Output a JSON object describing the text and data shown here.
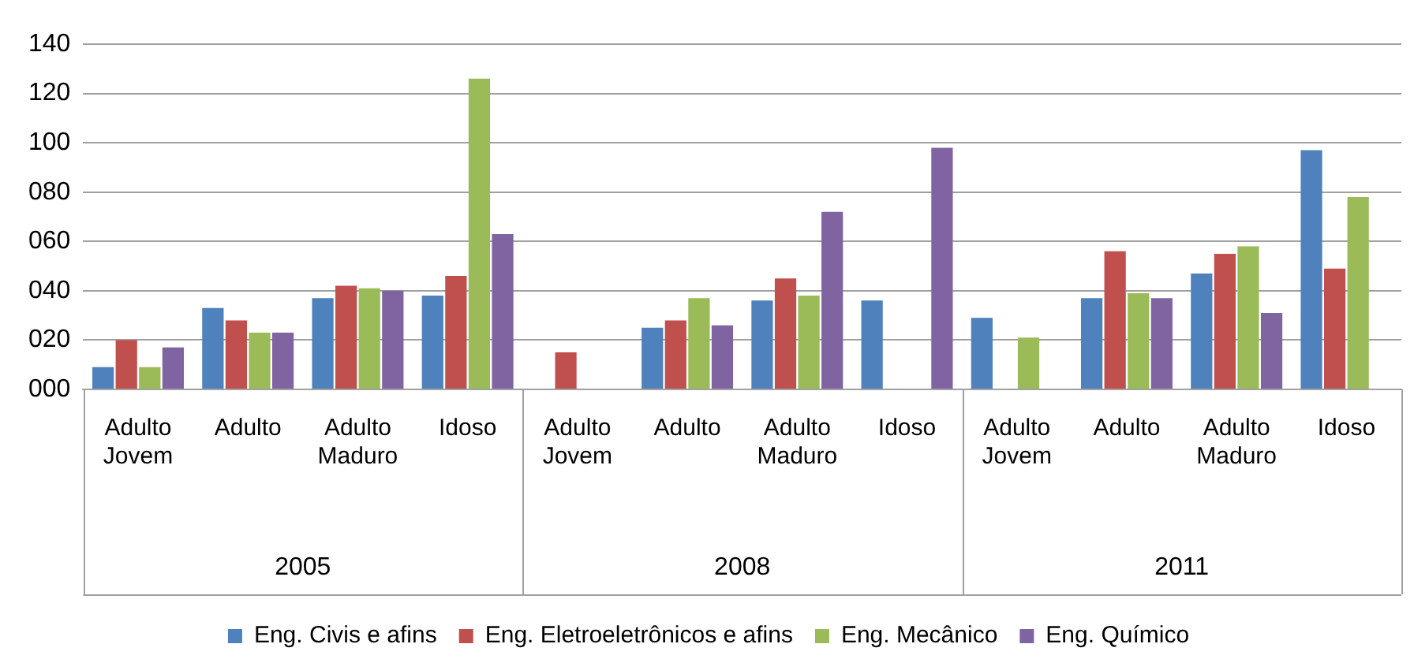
{
  "chart_data": {
    "type": "bar",
    "categories": [
      "Adulto Jovem",
      "Adulto",
      "Adulto Maduro",
      "Idoso",
      "Adulto Jovem",
      "Adulto",
      "Adulto Maduro",
      "Idoso",
      "Adulto Jovem",
      "Adulto",
      "Adulto Maduro",
      "Idoso"
    ],
    "annotations": [
      "2005",
      "2008",
      "2011"
    ],
    "series": [
      {
        "name": "Eng. Civis e afins",
        "color": "#4f81bd",
        "values": [
          9,
          33,
          37,
          38,
          null,
          25,
          36,
          36,
          29,
          37,
          47,
          97
        ]
      },
      {
        "name": "Eng. Eletroeletrônicos e afins",
        "color": "#c0504d",
        "values": [
          20,
          28,
          42,
          46,
          15,
          28,
          45,
          null,
          null,
          56,
          55,
          49
        ]
      },
      {
        "name": "Eng. Mecânico",
        "color": "#9bbb59",
        "values": [
          9,
          23,
          41,
          126,
          null,
          37,
          38,
          null,
          21,
          39,
          58,
          78
        ]
      },
      {
        "name": "Eng. Químico",
        "color": "#8064a2",
        "values": [
          17,
          23,
          40,
          63,
          null,
          26,
          72,
          98,
          null,
          37,
          31,
          null
        ]
      }
    ],
    "ylim": [
      0,
      140
    ],
    "yticks": [
      {
        "value": 0,
        "label": "000"
      },
      {
        "value": 20,
        "label": "020"
      },
      {
        "value": 40,
        "label": "040"
      },
      {
        "value": 60,
        "label": "060"
      },
      {
        "value": 80,
        "label": "080"
      },
      {
        "value": 100,
        "label": "100"
      },
      {
        "value": 120,
        "label": "120"
      },
      {
        "value": 140,
        "label": "140"
      }
    ],
    "grid": "y",
    "legend": "bottom"
  }
}
